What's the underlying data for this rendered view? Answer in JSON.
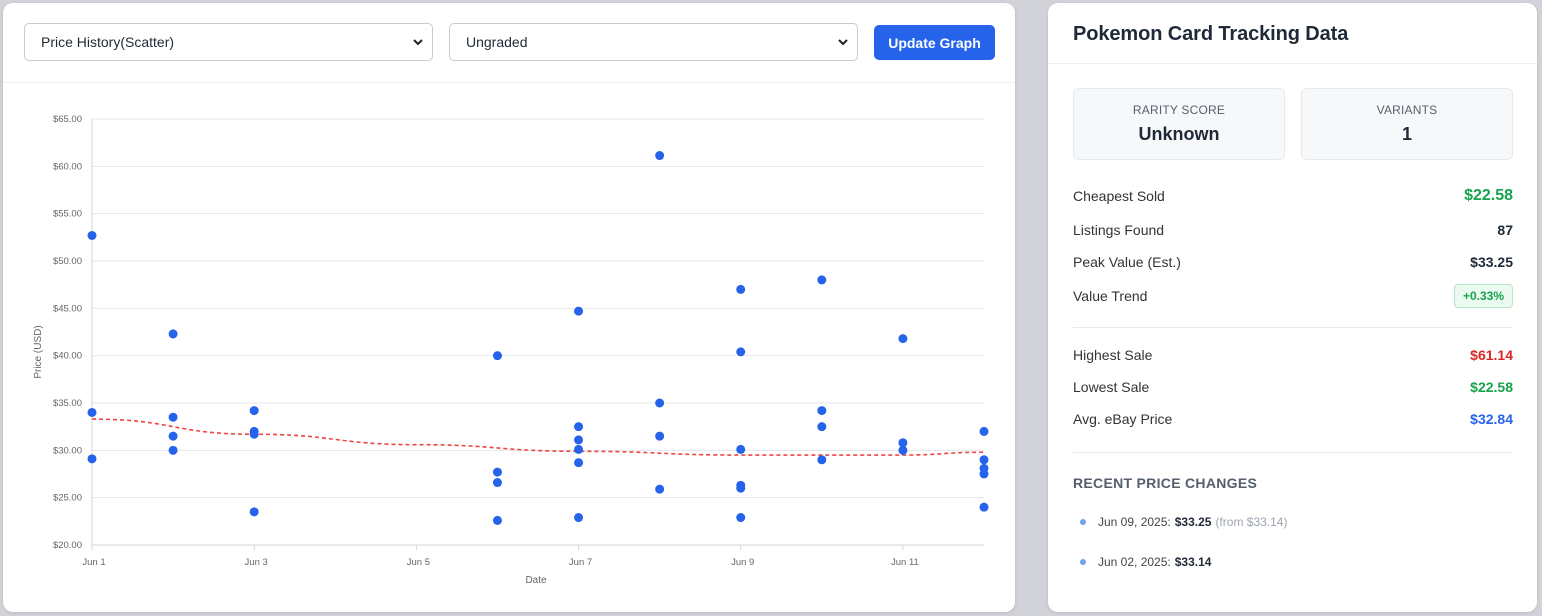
{
  "toolbar": {
    "chart_type": "Price History(Scatter)",
    "grade": "Ungraded",
    "update_label": "Update Graph"
  },
  "info": {
    "title": "Pokemon Card Tracking Data",
    "rarity_label": "RARITY SCORE",
    "rarity_value": "Unknown",
    "variants_label": "VARIANTS",
    "variants_value": "1",
    "cheapest_label": "Cheapest Sold",
    "cheapest_value": "$22.58",
    "listings_label": "Listings Found",
    "listings_value": "87",
    "peak_label": "Peak Value (Est.)",
    "peak_value": "$33.25",
    "trend_label": "Value Trend",
    "trend_value": "+0.33%",
    "highest_label": "Highest Sale",
    "highest_value": "$61.14",
    "lowest_label": "Lowest Sale",
    "lowest_value": "$22.58",
    "avg_label": "Avg. eBay Price",
    "avg_value": "$32.84",
    "recent_heading": "RECENT PRICE CHANGES",
    "changes": [
      {
        "date": "Jun 09, 2025:",
        "new": "$33.25",
        "old": "(from $33.14)"
      },
      {
        "date": "Jun 02, 2025:",
        "new": "$33.14",
        "old": ""
      }
    ]
  },
  "colors": {
    "accent": "#2563eb",
    "point": "#2563eb",
    "trendline": "#ef4444",
    "positive": "#16a34a",
    "negative": "#dc2626"
  },
  "chart_data": {
    "type": "scatter",
    "xlabel": "Date",
    "ylabel": "Price (USD)",
    "x_ticks": [
      "Jun 1",
      "Jun 3",
      "Jun 5",
      "Jun 7",
      "Jun 9",
      "Jun 11"
    ],
    "y_ticks": [
      "$20.00",
      "$25.00",
      "$30.00",
      "$35.00",
      "$40.00",
      "$45.00",
      "$50.00",
      "$55.00",
      "$60.00",
      "$65.00"
    ],
    "xlim": [
      "2025-06-01",
      "2025-06-12"
    ],
    "ylim": [
      20,
      65
    ],
    "grid": "horizontal",
    "points": [
      {
        "x": "2025-06-01",
        "y": 52.7
      },
      {
        "x": "2025-06-01",
        "y": 34.0
      },
      {
        "x": "2025-06-01",
        "y": 29.1
      },
      {
        "x": "2025-06-02",
        "y": 42.3
      },
      {
        "x": "2025-06-02",
        "y": 33.5
      },
      {
        "x": "2025-06-02",
        "y": 31.5
      },
      {
        "x": "2025-06-02",
        "y": 30.0
      },
      {
        "x": "2025-06-03",
        "y": 34.2
      },
      {
        "x": "2025-06-03",
        "y": 32.0
      },
      {
        "x": "2025-06-03",
        "y": 31.7
      },
      {
        "x": "2025-06-03",
        "y": 23.5
      },
      {
        "x": "2025-06-06",
        "y": 40.0
      },
      {
        "x": "2025-06-06",
        "y": 27.7
      },
      {
        "x": "2025-06-06",
        "y": 26.6
      },
      {
        "x": "2025-06-06",
        "y": 22.6
      },
      {
        "x": "2025-06-07",
        "y": 44.7
      },
      {
        "x": "2025-06-07",
        "y": 32.5
      },
      {
        "x": "2025-06-07",
        "y": 31.1
      },
      {
        "x": "2025-06-07",
        "y": 30.1
      },
      {
        "x": "2025-06-07",
        "y": 28.7
      },
      {
        "x": "2025-06-07",
        "y": 22.9
      },
      {
        "x": "2025-06-08",
        "y": 61.14
      },
      {
        "x": "2025-06-08",
        "y": 35.0
      },
      {
        "x": "2025-06-08",
        "y": 31.5
      },
      {
        "x": "2025-06-08",
        "y": 25.9
      },
      {
        "x": "2025-06-09",
        "y": 47.0
      },
      {
        "x": "2025-06-09",
        "y": 40.4
      },
      {
        "x": "2025-06-09",
        "y": 30.1
      },
      {
        "x": "2025-06-09",
        "y": 26.3
      },
      {
        "x": "2025-06-09",
        "y": 26.0
      },
      {
        "x": "2025-06-09",
        "y": 22.9
      },
      {
        "x": "2025-06-10",
        "y": 48.0
      },
      {
        "x": "2025-06-10",
        "y": 34.2
      },
      {
        "x": "2025-06-10",
        "y": 32.5
      },
      {
        "x": "2025-06-10",
        "y": 29.0
      },
      {
        "x": "2025-06-11",
        "y": 41.8
      },
      {
        "x": "2025-06-11",
        "y": 30.8
      },
      {
        "x": "2025-06-11",
        "y": 30.0
      },
      {
        "x": "2025-06-12",
        "y": 32.0
      },
      {
        "x": "2025-06-12",
        "y": 29.0
      },
      {
        "x": "2025-06-12",
        "y": 28.1
      },
      {
        "x": "2025-06-12",
        "y": 27.5
      },
      {
        "x": "2025-06-12",
        "y": 24.0
      }
    ],
    "trendline": [
      {
        "x": "2025-06-01",
        "y": 33.3
      },
      {
        "x": "2025-06-03",
        "y": 31.7
      },
      {
        "x": "2025-06-05",
        "y": 30.6
      },
      {
        "x": "2025-06-07",
        "y": 29.9
      },
      {
        "x": "2025-06-09",
        "y": 29.5
      },
      {
        "x": "2025-06-11",
        "y": 29.5
      },
      {
        "x": "2025-06-12",
        "y": 29.8
      }
    ]
  }
}
